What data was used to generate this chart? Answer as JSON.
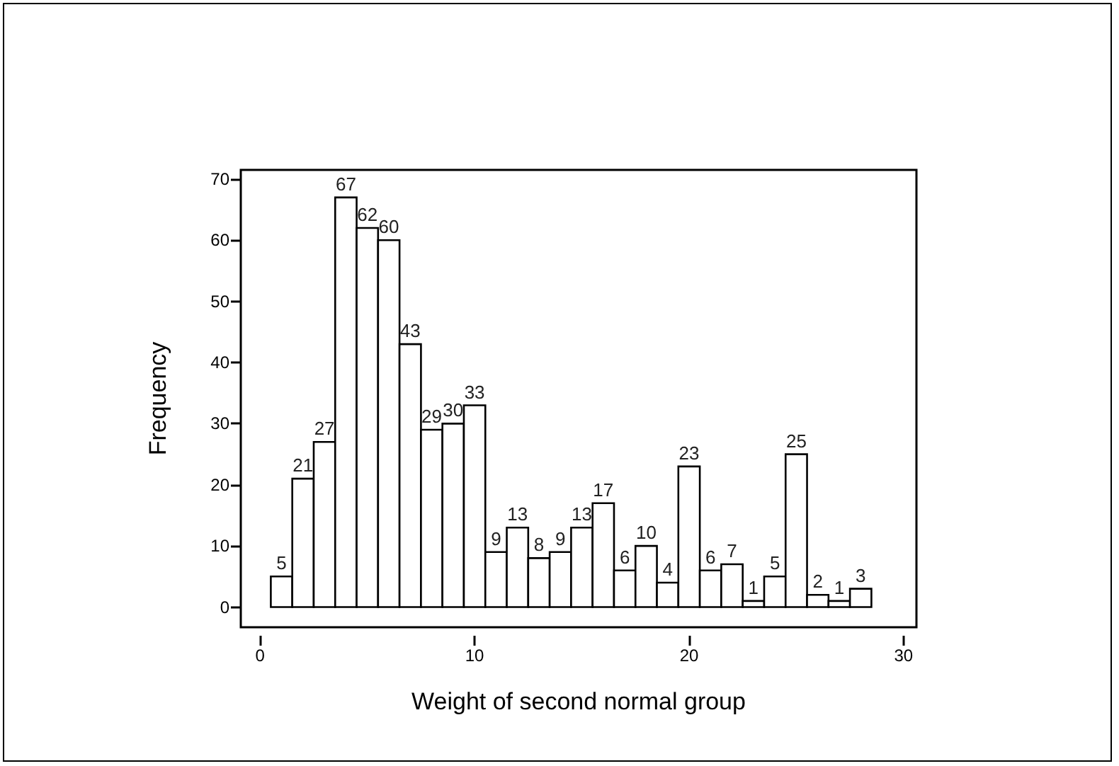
{
  "chart_data": {
    "type": "histogram",
    "xlabel": "Weight of second normal group",
    "ylabel": "Frequency",
    "bins": [
      0.5,
      1.5,
      2.5,
      3.5,
      4.5,
      5.5,
      6.5,
      7.5,
      8.5,
      9.5,
      10.5,
      11.5,
      12.5,
      13.5,
      14.5,
      15.5,
      16.5,
      17.5,
      18.5,
      19.5,
      20.5,
      21.5,
      22.5,
      23.5,
      24.5,
      25.5,
      26.5,
      27.5,
      28.5
    ],
    "values": [
      5,
      21,
      27,
      67,
      62,
      60,
      43,
      29,
      30,
      33,
      9,
      13,
      8,
      9,
      13,
      17,
      6,
      10,
      4,
      23,
      6,
      7,
      1,
      5,
      25,
      2,
      1,
      3
    ],
    "color": "#ffffff",
    "data_labels": true,
    "grid": false,
    "xlim": [
      -0.9,
      30.6
    ],
    "xticks": [
      0,
      10,
      20,
      30
    ],
    "ylim": [
      -3.3,
      71.5
    ],
    "yticks": [
      0,
      10,
      20,
      30,
      40,
      50,
      60,
      70
    ]
  }
}
